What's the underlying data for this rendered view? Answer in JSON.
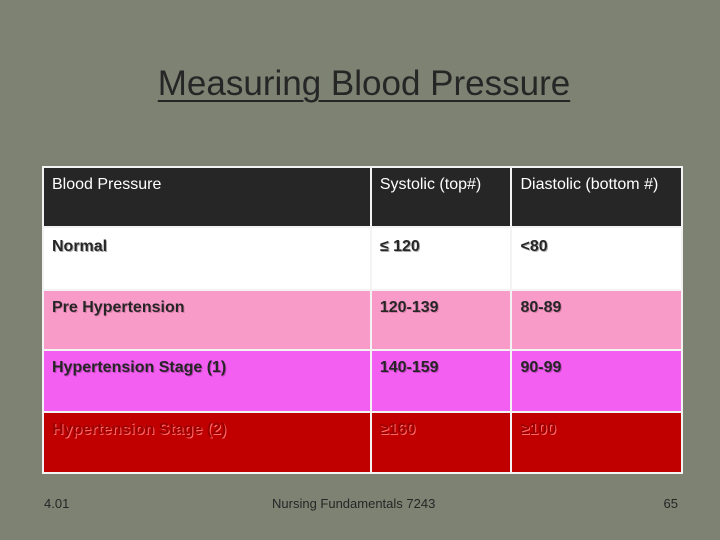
{
  "slide": {
    "title": "Measuring Blood Pressure"
  },
  "table": {
    "headers": [
      "Blood Pressure",
      "Systolic (top#)",
      "Diastolic (bottom #)"
    ],
    "rows": [
      {
        "category": "Normal",
        "systolic": "≤ 120",
        "diastolic": "<80",
        "color": "#ffffff"
      },
      {
        "category": "Pre Hypertension",
        "systolic": "120-139",
        "diastolic": "80-89",
        "color": "#f99bc9"
      },
      {
        "category": "Hypertension Stage (1)",
        "systolic": "140-159",
        "diastolic": "90-99",
        "color": "#f35ff1"
      },
      {
        "category": "Hypertension Stage (2)",
        "systolic": "≥160",
        "diastolic": "≥100",
        "color": "#c00000"
      }
    ]
  },
  "footer": {
    "left": "4.01",
    "center": "Nursing Fundamentals 7243",
    "right": "65"
  },
  "colors": {
    "background": "#7e8273",
    "header_row": "#262626"
  }
}
